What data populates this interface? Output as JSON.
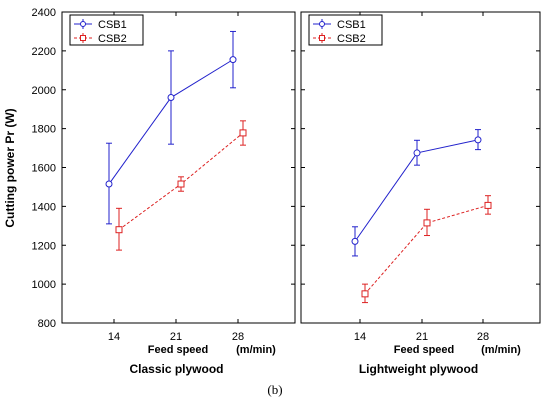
{
  "figure": {
    "caption": "(b)"
  },
  "chart_data": [
    {
      "type": "line",
      "title": "Classic plywood",
      "xlabel": "Feed speed",
      "x_unit": "(m/min)",
      "ylabel": "Cutting power Pr (W)",
      "ylim": [
        800,
        2400
      ],
      "yticks": [
        800,
        1000,
        1200,
        1400,
        1600,
        1800,
        2000,
        2200,
        2400
      ],
      "x": [
        14,
        21,
        28
      ],
      "legend": "top-left",
      "series": [
        {
          "name": "CSB1",
          "color": "#2222cc",
          "marker": "circle",
          "line": "solid",
          "values": [
            1515,
            1960,
            2155
          ],
          "err_low": [
            1310,
            1720,
            2010
          ],
          "err_high": [
            1725,
            2200,
            2300
          ]
        },
        {
          "name": "CSB2",
          "color": "#dd2222",
          "marker": "square",
          "line": "dashed",
          "values": [
            1280,
            1515,
            1778
          ],
          "err_low": [
            1175,
            1478,
            1715
          ],
          "err_high": [
            1390,
            1552,
            1840
          ]
        }
      ]
    },
    {
      "type": "line",
      "title": "Lightweight plywood",
      "xlabel": "Feed speed",
      "x_unit": "(m/min)",
      "ylim": [
        800,
        2400
      ],
      "x": [
        14,
        21,
        28
      ],
      "legend": "top-left",
      "series": [
        {
          "name": "CSB1",
          "color": "#2222cc",
          "marker": "circle",
          "line": "solid",
          "values": [
            1220,
            1675,
            1742
          ],
          "err_low": [
            1145,
            1612,
            1692
          ],
          "err_high": [
            1295,
            1740,
            1795
          ]
        },
        {
          "name": "CSB2",
          "color": "#dd2222",
          "marker": "square",
          "line": "dashed",
          "values": [
            950,
            1315,
            1405
          ],
          "err_low": [
            905,
            1250,
            1360
          ],
          "err_high": [
            1000,
            1385,
            1455
          ]
        }
      ]
    }
  ]
}
